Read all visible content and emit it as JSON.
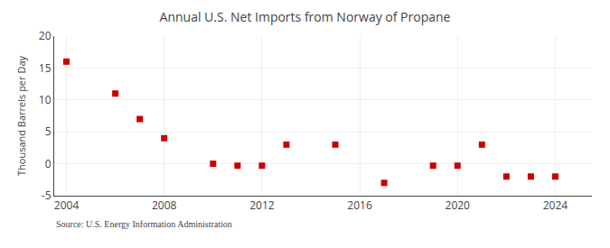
{
  "chart_data": {
    "type": "scatter",
    "title": "Annual U.S. Net Imports from Norway of Propane",
    "ylabel": "Thousand Barrels per Day",
    "annotations": [
      "Source: U.S. Energy Information Administration"
    ],
    "x": [
      2004,
      2006,
      2007,
      2008,
      2010,
      2011,
      2012,
      2013,
      2015,
      2017,
      2019,
      2020,
      2021,
      2022,
      2023,
      2024
    ],
    "values": [
      16,
      11,
      7,
      4,
      0,
      -0.3,
      -0.3,
      3,
      3,
      -3,
      -0.3,
      -0.3,
      3,
      -2,
      -2,
      -2
    ],
    "color": "#cc0000",
    "marker": "square",
    "xlim": [
      2003.5,
      2025.5
    ],
    "ylim": [
      -5,
      20
    ],
    "xticks": [
      2004,
      2008,
      2012,
      2016,
      2020,
      2024
    ],
    "yticks": [
      -5,
      0,
      5,
      10,
      15,
      20
    ],
    "grid": true
  }
}
